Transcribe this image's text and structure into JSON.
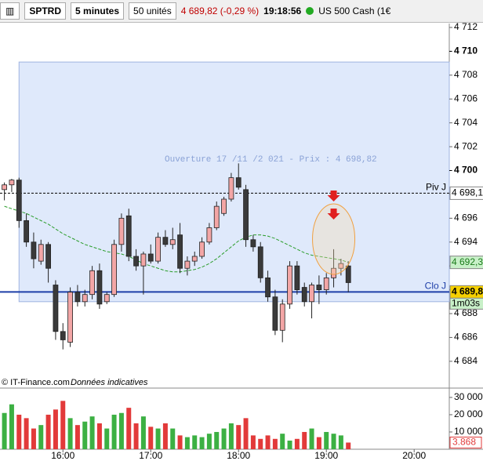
{
  "toolbar": {
    "symbol": "SPTRD",
    "interval": "5 minutes",
    "units": "50 unités",
    "last": "4 689,82 (-0,29 %)",
    "time": "19:18:56",
    "instrument": "US 500 Cash (1€"
  },
  "footer": {
    "copyright": "© IT-Finance.com",
    "note": "Données indicatives"
  },
  "chart_data": [
    {
      "type": "candlestick",
      "annotation": "Ouverture 17 /11 /2 021  - Prix : 4 698,82",
      "x": [
        920,
        925,
        930,
        935,
        940,
        945,
        950,
        955,
        960,
        965,
        970,
        975,
        980,
        985,
        990,
        995,
        1000,
        1005,
        1010,
        1015,
        1020,
        1025,
        1030,
        1035,
        1040,
        1045,
        1050,
        1055,
        1060,
        1065,
        1070,
        1075,
        1080,
        1085,
        1090,
        1095,
        1100,
        1105,
        1110,
        1115,
        1120,
        1125,
        1130,
        1135,
        1140,
        1145,
        1150,
        1155
      ],
      "open": [
        4698.4,
        4698.8,
        4699.2,
        4695.8,
        4694.0,
        4692.4,
        4693.8,
        4690.4,
        4686.5,
        4685.6,
        4689.8,
        4689.0,
        4689.6,
        4691.6,
        4689.0,
        4689.6,
        4693.8,
        4696.2,
        4692.8,
        4692.0,
        4693.0,
        4692.4,
        4694.4,
        4693.8,
        4694.6,
        4691.8,
        4692.4,
        4692.8,
        4694.0,
        4695.2,
        4696.4,
        4697.6,
        4699.4,
        4698.4,
        4694.2,
        4693.6,
        4691.0,
        4689.4,
        4686.6,
        4688.8,
        4692.0,
        4690.2,
        4689.0,
        4690.4,
        4690.0,
        4691.0,
        4691.8,
        4692.0
      ],
      "high": [
        4699.0,
        4699.3,
        4699.4,
        4696.4,
        4694.8,
        4694.2,
        4694.0,
        4690.8,
        4687.2,
        4690.2,
        4690.4,
        4690.0,
        4692.0,
        4692.2,
        4689.8,
        4694.2,
        4696.4,
        4696.8,
        4693.4,
        4693.2,
        4693.8,
        4694.8,
        4695.0,
        4695.2,
        4695.6,
        4692.8,
        4693.2,
        4694.4,
        4695.6,
        4697.4,
        4697.8,
        4699.8,
        4700.6,
        4698.8,
        4694.6,
        4694.0,
        4691.6,
        4690.0,
        4689.2,
        4692.4,
        4692.4,
        4690.6,
        4690.6,
        4691.2,
        4691.4,
        4693.4,
        4692.6,
        4692.4
      ],
      "low": [
        4697.5,
        4698.2,
        4695.2,
        4693.6,
        4691.8,
        4692.1,
        4690.6,
        4685.8,
        4685.0,
        4685.2,
        4688.6,
        4688.6,
        4689.2,
        4688.4,
        4688.8,
        4689.4,
        4693.2,
        4692.4,
        4691.6,
        4689.6,
        4692.2,
        4692.2,
        4693.6,
        4693.4,
        4691.4,
        4691.2,
        4692.0,
        4692.6,
        4693.8,
        4695.0,
        4696.2,
        4697.4,
        4698.4,
        4693.6,
        4693.2,
        4690.6,
        4689.0,
        4686.2,
        4685.6,
        4688.4,
        4689.6,
        4688.6,
        4687.6,
        4688.8,
        4689.6,
        4690.2,
        4691.2,
        4689.8
      ],
      "close": [
        4698.8,
        4699.2,
        4695.8,
        4694.0,
        4692.6,
        4693.8,
        4691.8,
        4686.5,
        4685.8,
        4689.8,
        4689.0,
        4689.6,
        4691.6,
        4688.8,
        4689.6,
        4693.8,
        4696.0,
        4692.8,
        4692.0,
        4693.0,
        4692.4,
        4694.4,
        4693.8,
        4694.2,
        4691.8,
        4692.4,
        4692.8,
        4694.0,
        4695.2,
        4697.0,
        4697.6,
        4699.4,
        4698.6,
        4694.2,
        4693.6,
        4691.0,
        4689.4,
        4686.6,
        4688.8,
        4692.0,
        4690.0,
        4689.0,
        4690.4,
        4690.0,
        4691.0,
        4691.8,
        4692.2,
        4690.6
      ],
      "moving_average": {
        "color": "#2a9d2a",
        "value_label": "4 692,3",
        "label_value": 4692.3,
        "values": [
          4697.0,
          4696.8,
          4696.6,
          4696.4,
          4696.1,
          4695.8,
          4695.5,
          4695.1,
          4694.7,
          4694.4,
          4694.1,
          4693.8,
          4693.6,
          4693.4,
          4693.2,
          4693.1,
          4693.0,
          4692.8,
          4692.5,
          4692.2,
          4692.0,
          4691.8,
          4691.6,
          4691.5,
          4691.5,
          4691.6,
          4691.7,
          4691.9,
          4692.2,
          4692.6,
          4693.1,
          4693.6,
          4694.1,
          4694.4,
          4694.6,
          4694.6,
          4694.5,
          4694.3,
          4694.0,
          4693.7,
          4693.4,
          4693.1,
          4692.9,
          4692.8,
          4692.7,
          4692.6,
          4692.5,
          4692.3
        ]
      },
      "up_color": "#f3a6a6",
      "down_color": "#3a3a3a",
      "zone": {
        "x_start": 930,
        "low": 4689.0,
        "high": 4709.1,
        "color": "#dfe9fb"
      },
      "reference_lines": [
        {
          "label": "Piv J",
          "value": 4698.1,
          "value_label": "4 698,1",
          "color": "#000000",
          "dashed": true
        },
        {
          "label": "Clo J",
          "value": 4689.82,
          "value_label": "4 689,82",
          "color": "#1e3fa8",
          "dashed": false
        }
      ],
      "timer": "1m03s",
      "xlim": [
        917,
        1224
      ],
      "xticks": [
        {
          "value": 960,
          "label": "16:00"
        },
        {
          "value": 1020,
          "label": "17:00"
        },
        {
          "value": 1080,
          "label": "18:00"
        },
        {
          "value": 1140,
          "label": "19:00"
        },
        {
          "value": 1200,
          "label": "20:00"
        }
      ],
      "ylim": [
        4682.74,
        4712.33
      ],
      "yticks": [
        {
          "value": 4712,
          "label": "4 712"
        },
        {
          "value": 4710,
          "label": "4 710"
        },
        {
          "value": 4708,
          "label": "4 708"
        },
        {
          "value": 4706,
          "label": "4 706"
        },
        {
          "value": 4704,
          "label": "4 704"
        },
        {
          "value": 4702,
          "label": "4 702"
        },
        {
          "value": 4700,
          "label": "4 700"
        },
        {
          "value": 4698,
          "label": "4 698"
        },
        {
          "value": 4696,
          "label": "4 696"
        },
        {
          "value": 4694,
          "label": "4 694"
        },
        {
          "value": 4692,
          "label": "4 692"
        },
        {
          "value": 4690,
          "label": "4 690"
        },
        {
          "value": 4688,
          "label": "4 688"
        },
        {
          "value": 4686,
          "label": "4 686"
        },
        {
          "value": 4684,
          "label": "4 684"
        }
      ],
      "bold_ticks": [
        4710,
        4700
      ]
    },
    {
      "type": "bar",
      "up_color": "#3cb043",
      "down_color": "#e23a3a",
      "values": [
        21000,
        26000,
        20000,
        18000,
        12000,
        14000,
        20000,
        23000,
        28000,
        18000,
        14000,
        16000,
        19000,
        15000,
        12000,
        20000,
        21000,
        24000,
        15000,
        19000,
        13000,
        12000,
        15000,
        12000,
        8000,
        7000,
        8000,
        7000,
        9000,
        10000,
        12000,
        15000,
        14000,
        18000,
        8000,
        6000,
        8000,
        6000,
        9000,
        5000,
        6000,
        10000,
        12000,
        7000,
        10000,
        9000,
        8000,
        3868
      ],
      "last_label": "3.868",
      "ylim": [
        0,
        34500
      ],
      "yticks": [
        {
          "value": 30000,
          "label": "30 000"
        },
        {
          "value": 20000,
          "label": "20 000"
        },
        {
          "value": 10000,
          "label": "10 000"
        }
      ]
    }
  ]
}
